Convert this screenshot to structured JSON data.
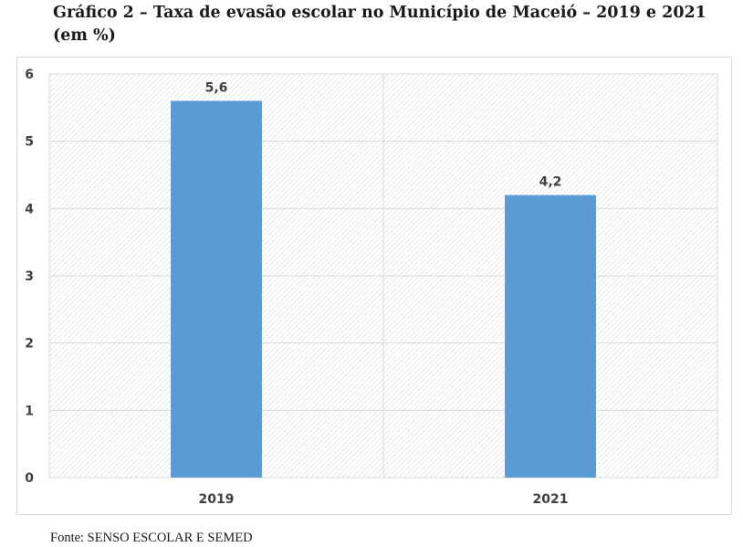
{
  "figure": {
    "title": "Gráfico 2 – Taxa de evasão escolar no Município de Maceió – 2019 e 2021 (em %)",
    "source": "Fonte: SENSO ESCOLAR E SEMED"
  },
  "colors": {
    "bar": "#5b9bd5",
    "grid": "#d9d9d9",
    "plot_hatch": "#e6e6e6",
    "axis_text": "#404040"
  },
  "chart_data": {
    "type": "bar",
    "categories": [
      "2019",
      "2021"
    ],
    "values": [
      5.6,
      4.2
    ],
    "data_labels": [
      "5,6",
      "4,2"
    ],
    "title": "",
    "xlabel": "",
    "ylabel": "",
    "ylim": [
      0,
      6
    ],
    "yticks": [
      0,
      1,
      2,
      3,
      4,
      5,
      6
    ],
    "ytick_labels": [
      "0",
      "1",
      "2",
      "3",
      "4",
      "5",
      "6"
    ],
    "grid": true,
    "legend": "none"
  }
}
